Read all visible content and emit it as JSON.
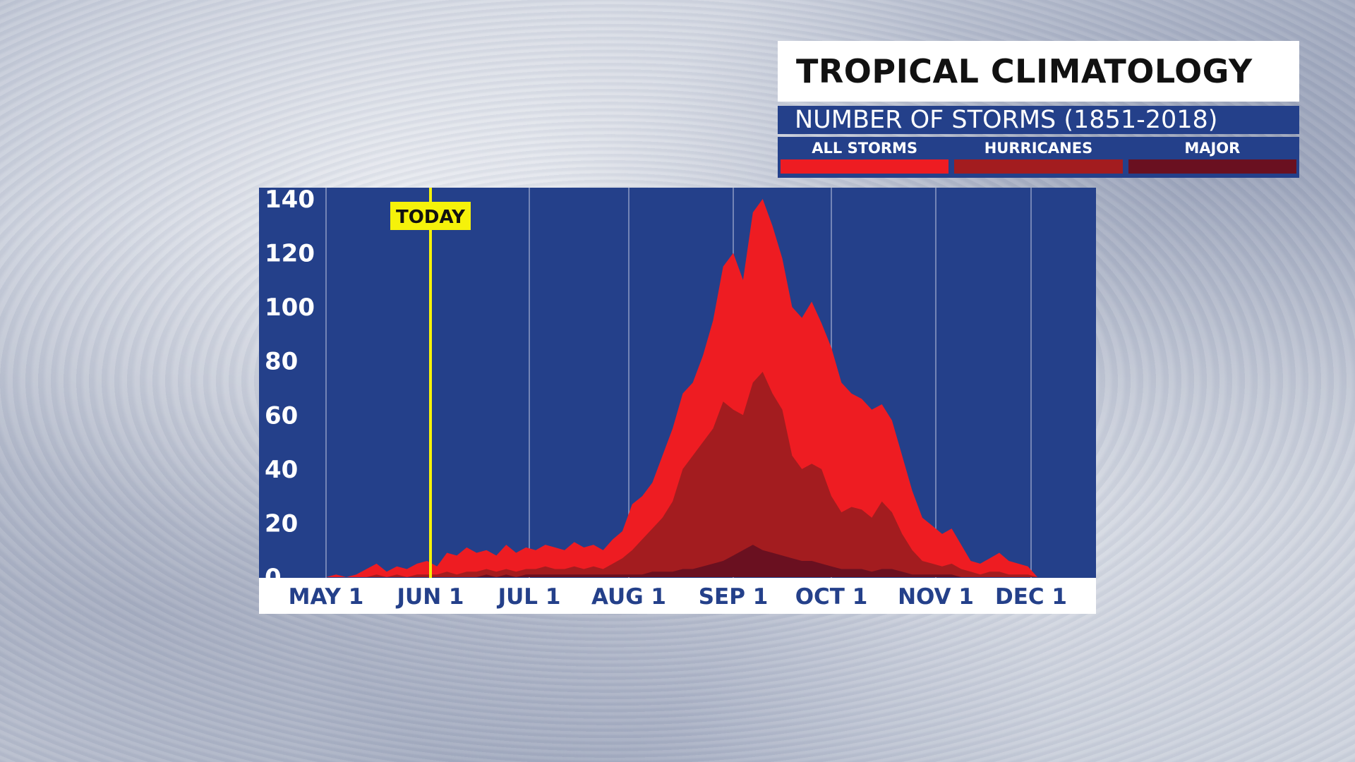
{
  "header": {
    "title": "TROPICAL CLIMATOLOGY",
    "subtitle": "NUMBER OF STORMS (1851-2018)"
  },
  "legend": [
    {
      "label": "ALL STORMS",
      "color": "#ee1c22"
    },
    {
      "label": "HURRICANES",
      "color": "#a31c1f"
    },
    {
      "label": "MAJOR HURRICANES",
      "color": "#6a1020"
    }
  ],
  "today_label": "TODAY",
  "chart_data": {
    "type": "area",
    "title": "",
    "xlabel": "",
    "ylabel": "",
    "ylim": [
      0,
      140
    ],
    "y_ticks": [
      140,
      120,
      100,
      80,
      60,
      40,
      20,
      0
    ],
    "x_ticks": [
      "MAY 1",
      "JUN 1",
      "JUL 1",
      "AUG 1",
      "SEP 1",
      "OCT 1",
      "NOV 1",
      "DEC 1"
    ],
    "grid": true,
    "plot_background": "#24408a",
    "today_marker": "JUN 1",
    "x_days_note": "x values are day of season counted from MAY 1",
    "series": [
      {
        "name": "ALL STORMS",
        "color": "#ee1c22",
        "x": [
          0,
          3,
          6,
          9,
          12,
          15,
          18,
          21,
          24,
          27,
          30,
          33,
          36,
          39,
          42,
          45,
          48,
          51,
          54,
          57,
          60,
          63,
          66,
          69,
          72,
          75,
          78,
          81,
          84,
          87,
          90,
          93,
          96,
          99,
          102,
          105,
          108,
          111,
          114,
          117,
          120,
          123,
          126,
          129,
          132,
          135,
          138,
          141,
          144,
          147,
          150,
          153,
          156,
          159,
          162,
          165,
          168,
          171,
          174,
          177,
          180,
          183,
          186,
          189,
          192,
          195,
          198,
          201,
          204,
          207,
          210,
          213,
          216
        ],
        "values": [
          0,
          1,
          0,
          1,
          3,
          5,
          2,
          4,
          3,
          5,
          6,
          4,
          9,
          8,
          11,
          9,
          10,
          8,
          12,
          9,
          11,
          10,
          12,
          11,
          10,
          13,
          11,
          12,
          10,
          14,
          17,
          27,
          30,
          35,
          45,
          55,
          68,
          72,
          82,
          95,
          115,
          120,
          110,
          135,
          140,
          130,
          118,
          100,
          96,
          102,
          94,
          85,
          72,
          68,
          66,
          62,
          64,
          58,
          45,
          32,
          22,
          19,
          16,
          18,
          12,
          6,
          5,
          7,
          9,
          6,
          5,
          4,
          0
        ]
      },
      {
        "name": "HURRICANES",
        "color": "#a31c1f",
        "x": [
          0,
          3,
          6,
          9,
          12,
          15,
          18,
          21,
          24,
          27,
          30,
          33,
          36,
          39,
          42,
          45,
          48,
          51,
          54,
          57,
          60,
          63,
          66,
          69,
          72,
          75,
          78,
          81,
          84,
          87,
          90,
          93,
          96,
          99,
          102,
          105,
          108,
          111,
          114,
          117,
          120,
          123,
          126,
          129,
          132,
          135,
          138,
          141,
          144,
          147,
          150,
          153,
          156,
          159,
          162,
          165,
          168,
          171,
          174,
          177,
          180,
          183,
          186,
          189,
          192,
          195,
          198,
          201,
          204,
          207,
          210,
          213,
          216
        ],
        "values": [
          0,
          0,
          0,
          0,
          0,
          1,
          0,
          1,
          0,
          1,
          1,
          1,
          2,
          1,
          2,
          2,
          3,
          2,
          3,
          2,
          3,
          3,
          4,
          3,
          3,
          4,
          3,
          4,
          3,
          5,
          7,
          10,
          14,
          18,
          22,
          28,
          40,
          45,
          50,
          55,
          65,
          62,
          60,
          72,
          76,
          68,
          62,
          45,
          40,
          42,
          40,
          30,
          24,
          26,
          25,
          22,
          28,
          24,
          16,
          10,
          6,
          5,
          4,
          5,
          3,
          2,
          1,
          2,
          2,
          1,
          1,
          1,
          0
        ]
      },
      {
        "name": "MAJOR HURRICANES",
        "color": "#6a1020",
        "x": [
          0,
          3,
          6,
          9,
          12,
          15,
          18,
          21,
          24,
          27,
          30,
          33,
          36,
          39,
          42,
          45,
          48,
          51,
          54,
          57,
          60,
          63,
          66,
          69,
          72,
          75,
          78,
          81,
          84,
          87,
          90,
          93,
          96,
          99,
          102,
          105,
          108,
          111,
          114,
          117,
          120,
          123,
          126,
          129,
          132,
          135,
          138,
          141,
          144,
          147,
          150,
          153,
          156,
          159,
          162,
          165,
          168,
          171,
          174,
          177,
          180,
          183,
          186,
          189,
          192,
          195,
          198,
          201,
          204,
          207,
          210,
          213,
          216
        ],
        "values": [
          0,
          0,
          0,
          0,
          0,
          0,
          0,
          0,
          0,
          0,
          0,
          0,
          0,
          0,
          0,
          0,
          1,
          0,
          1,
          0,
          1,
          1,
          1,
          1,
          1,
          1,
          1,
          1,
          1,
          1,
          1,
          1,
          1,
          2,
          2,
          2,
          3,
          3,
          4,
          5,
          6,
          8,
          10,
          12,
          10,
          9,
          8,
          7,
          6,
          6,
          5,
          4,
          3,
          3,
          3,
          2,
          3,
          3,
          2,
          1,
          1,
          1,
          1,
          1,
          0,
          0,
          0,
          0,
          0,
          0,
          0,
          0,
          0
        ]
      }
    ]
  }
}
